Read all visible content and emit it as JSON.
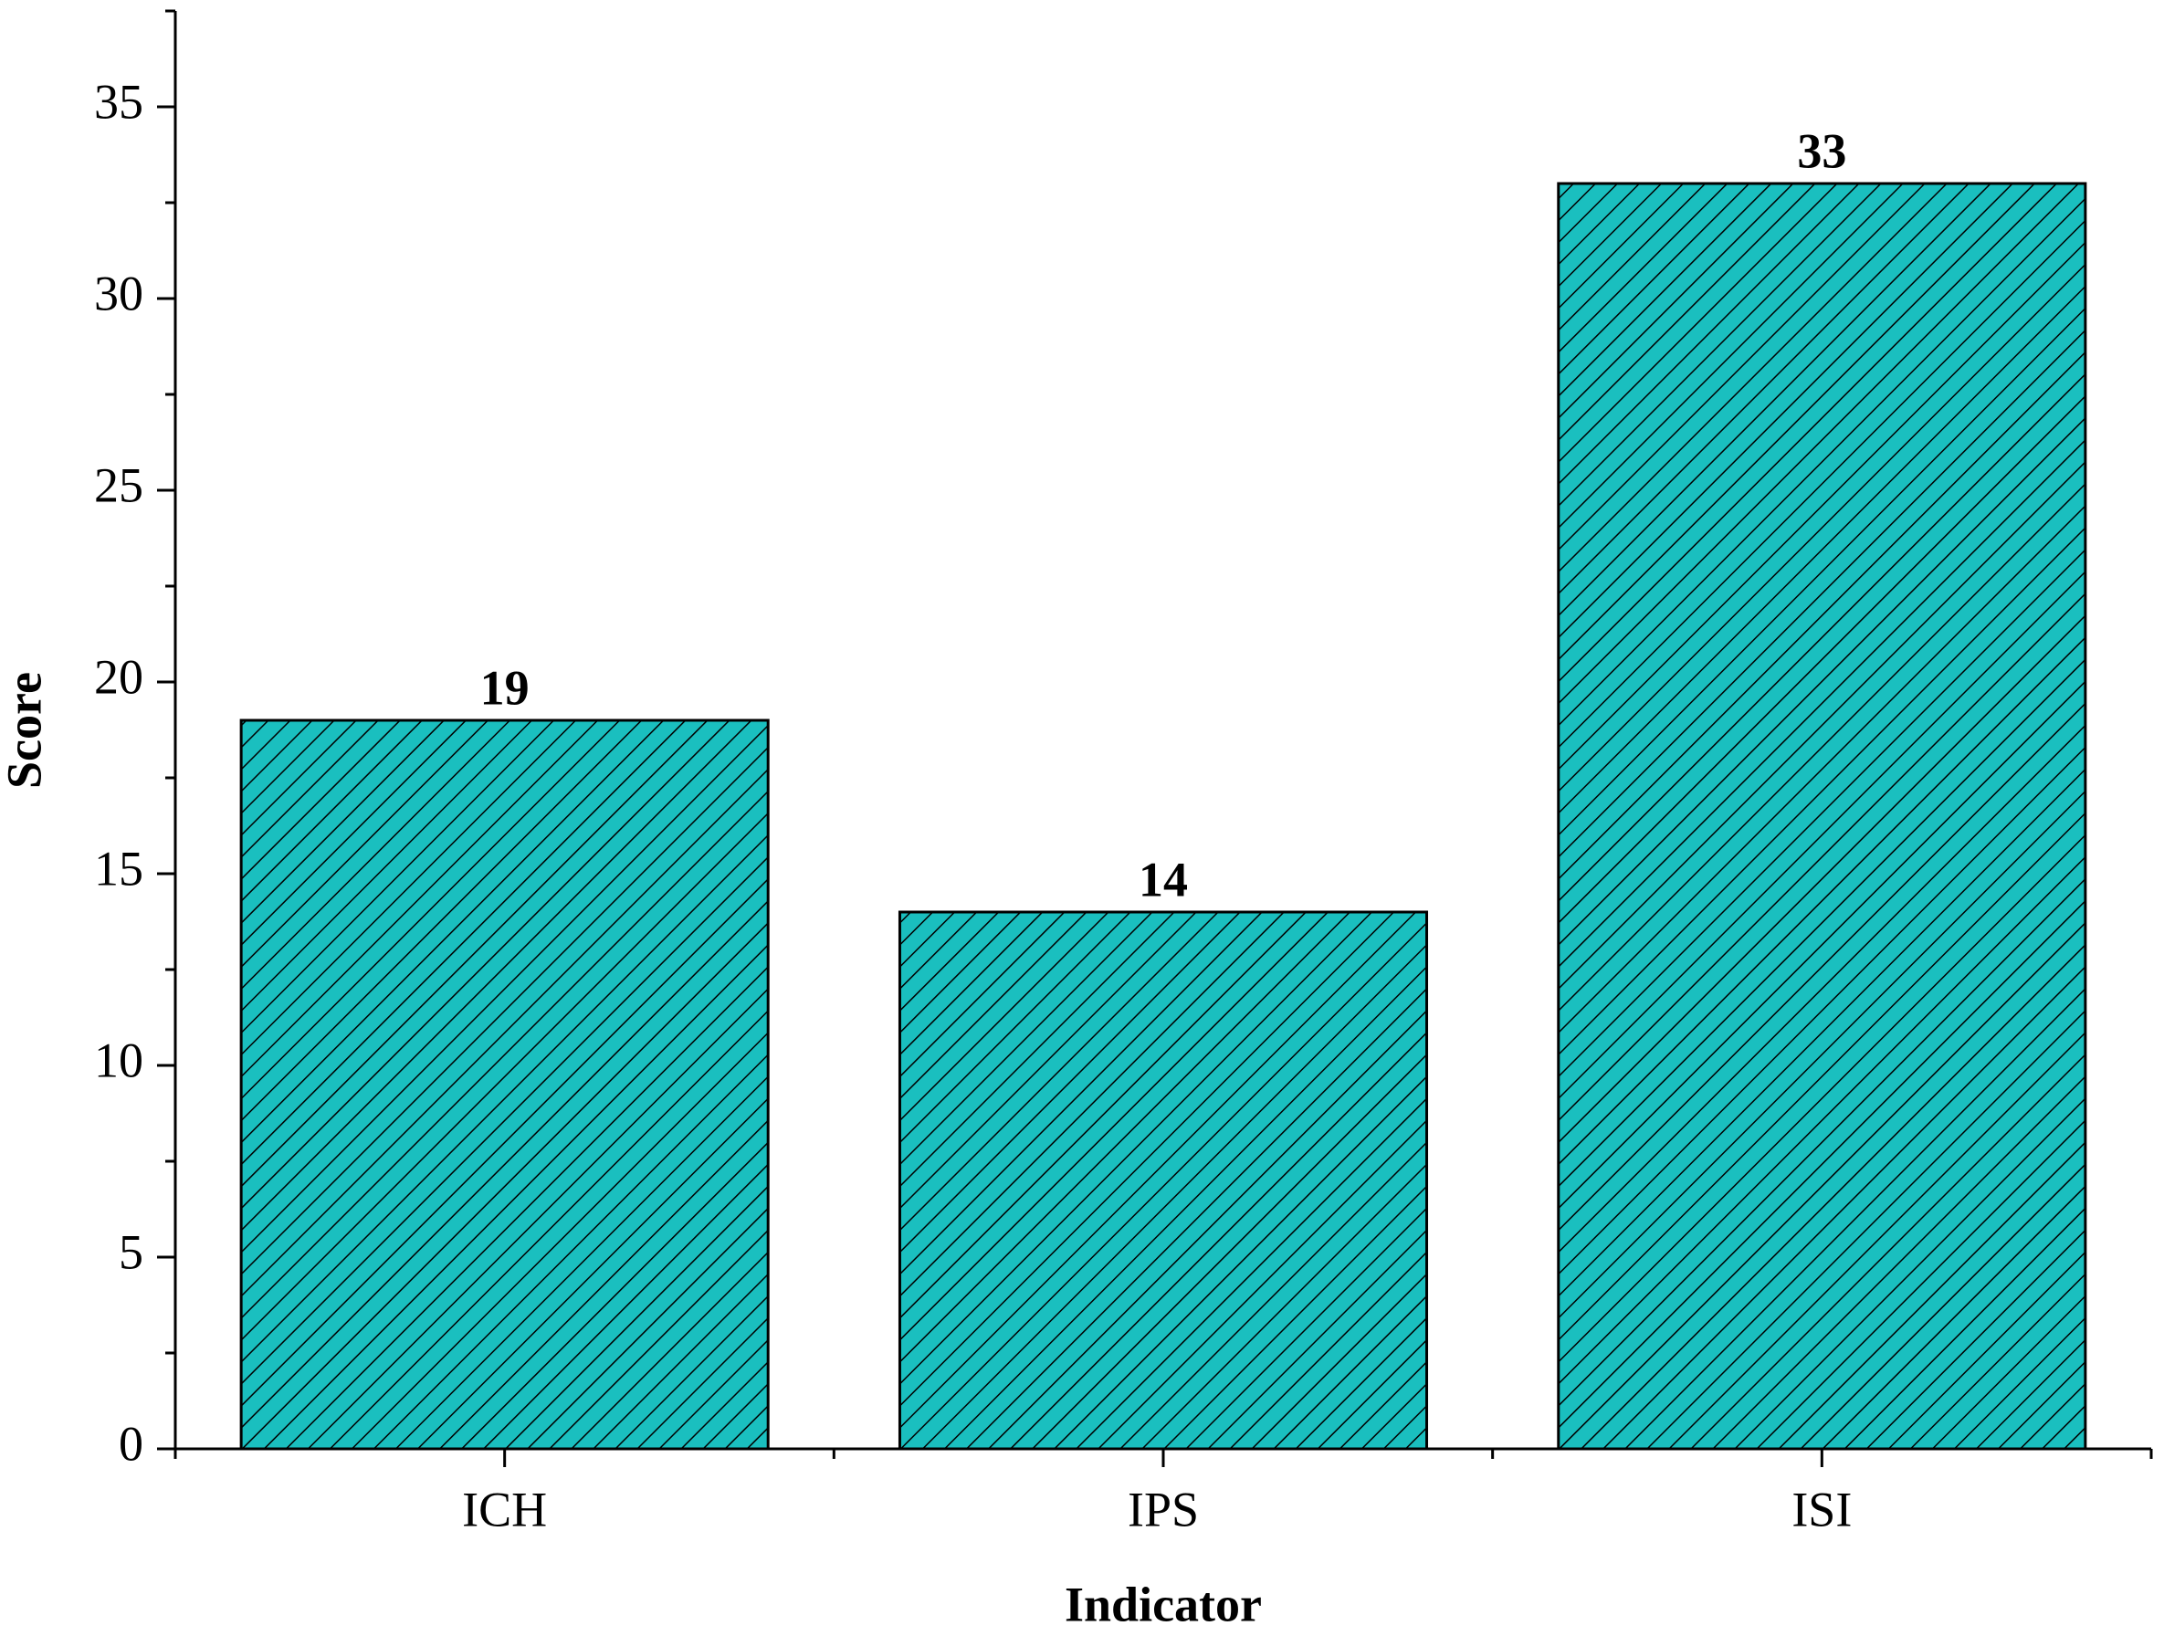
{
  "chart_data": {
    "type": "bar",
    "categories": [
      "ICH",
      "IPS",
      "ISI"
    ],
    "values": [
      19,
      14,
      33
    ],
    "color": "#1ABFBF",
    "hatch": true,
    "xlabel": "Indicator",
    "ylabel": "Score",
    "ylim": [
      0,
      37.5
    ],
    "yticks": [
      0,
      5,
      10,
      15,
      20,
      25,
      30,
      35
    ],
    "grid": false
  }
}
